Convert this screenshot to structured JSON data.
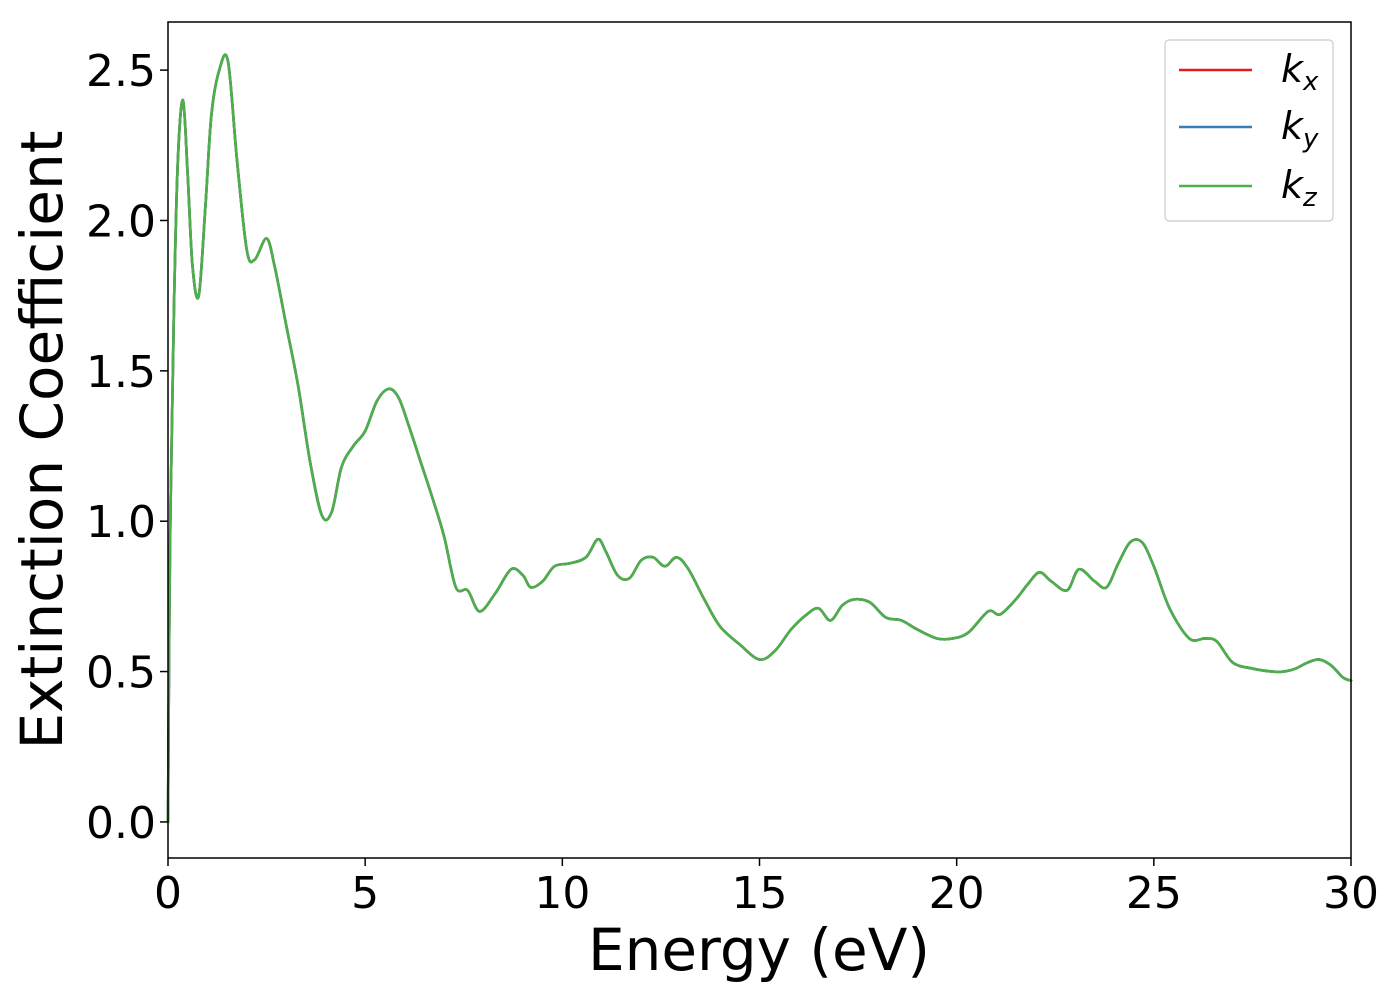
{
  "chart_data": {
    "type": "line",
    "title": "",
    "xlabel": "Energy (eV)",
    "ylabel": "Extinction Coefficient",
    "xlim": [
      0,
      30
    ],
    "ylim": [
      -0.12,
      2.66
    ],
    "xticks": [
      0,
      5,
      10,
      15,
      20,
      25,
      30
    ],
    "xtick_labels": [
      "0",
      "5",
      "10",
      "15",
      "20",
      "25",
      "30"
    ],
    "yticks": [
      0.0,
      0.5,
      1.0,
      1.5,
      2.0,
      2.5
    ],
    "ytick_labels": [
      "0.0",
      "0.5",
      "1.0",
      "1.5",
      "2.0",
      "2.5"
    ],
    "grid": false,
    "legend_position": "top-right",
    "x": [
      0,
      0.05,
      0.15,
      0.25,
      0.38,
      0.5,
      0.62,
      0.78,
      0.95,
      1.1,
      1.3,
      1.52,
      1.75,
      2.0,
      2.2,
      2.5,
      2.7,
      3.0,
      3.3,
      3.6,
      3.9,
      4.15,
      4.4,
      4.7,
      5.0,
      5.3,
      5.6,
      5.85,
      6.1,
      6.4,
      6.7,
      7.0,
      7.3,
      7.6,
      7.9,
      8.3,
      8.7,
      9.0,
      9.2,
      9.5,
      9.8,
      10.2,
      10.6,
      10.9,
      11.1,
      11.4,
      11.7,
      12.0,
      12.3,
      12.6,
      12.9,
      13.2,
      13.6,
      14.0,
      14.5,
      15.0,
      15.4,
      15.8,
      16.2,
      16.5,
      16.8,
      17.1,
      17.4,
      17.8,
      18.2,
      18.6,
      19.0,
      19.5,
      19.9,
      20.3,
      20.8,
      21.1,
      21.5,
      21.8,
      22.1,
      22.4,
      22.8,
      23.1,
      23.5,
      23.8,
      24.1,
      24.4,
      24.7,
      25.0,
      25.4,
      25.9,
      26.3,
      26.6,
      27.0,
      27.5,
      28.0,
      28.3,
      28.6,
      28.9,
      29.2,
      29.5,
      29.8,
      30.0
    ],
    "series": [
      {
        "name": "k_x",
        "legend_main": "k",
        "legend_sub": "x",
        "color": "#e41a1c",
        "values": [
          0.0,
          0.9,
          1.7,
          2.2,
          2.4,
          2.15,
          1.85,
          1.75,
          2.05,
          2.35,
          2.5,
          2.53,
          2.2,
          1.9,
          1.87,
          1.94,
          1.85,
          1.65,
          1.45,
          1.2,
          1.02,
          1.03,
          1.18,
          1.25,
          1.3,
          1.4,
          1.44,
          1.41,
          1.32,
          1.2,
          1.08,
          0.95,
          0.78,
          0.77,
          0.7,
          0.76,
          0.84,
          0.82,
          0.78,
          0.8,
          0.85,
          0.86,
          0.88,
          0.94,
          0.9,
          0.82,
          0.81,
          0.87,
          0.88,
          0.85,
          0.88,
          0.84,
          0.74,
          0.65,
          0.59,
          0.54,
          0.57,
          0.64,
          0.69,
          0.71,
          0.67,
          0.72,
          0.74,
          0.73,
          0.68,
          0.67,
          0.64,
          0.61,
          0.61,
          0.63,
          0.7,
          0.69,
          0.74,
          0.79,
          0.83,
          0.8,
          0.77,
          0.84,
          0.8,
          0.78,
          0.86,
          0.93,
          0.93,
          0.85,
          0.71,
          0.61,
          0.61,
          0.6,
          0.53,
          0.51,
          0.5,
          0.5,
          0.51,
          0.53,
          0.54,
          0.52,
          0.48,
          0.47
        ]
      },
      {
        "name": "k_y",
        "legend_main": "k",
        "legend_sub": "y",
        "color": "#377eb8",
        "values": [
          0.0,
          0.9,
          1.7,
          2.2,
          2.4,
          2.15,
          1.85,
          1.75,
          2.05,
          2.35,
          2.5,
          2.53,
          2.2,
          1.9,
          1.87,
          1.94,
          1.85,
          1.65,
          1.45,
          1.2,
          1.02,
          1.03,
          1.18,
          1.25,
          1.3,
          1.4,
          1.44,
          1.41,
          1.32,
          1.2,
          1.08,
          0.95,
          0.78,
          0.77,
          0.7,
          0.76,
          0.84,
          0.82,
          0.78,
          0.8,
          0.85,
          0.86,
          0.88,
          0.94,
          0.9,
          0.82,
          0.81,
          0.87,
          0.88,
          0.85,
          0.88,
          0.84,
          0.74,
          0.65,
          0.59,
          0.54,
          0.57,
          0.64,
          0.69,
          0.71,
          0.67,
          0.72,
          0.74,
          0.73,
          0.68,
          0.67,
          0.64,
          0.61,
          0.61,
          0.63,
          0.7,
          0.69,
          0.74,
          0.79,
          0.83,
          0.8,
          0.77,
          0.84,
          0.8,
          0.78,
          0.86,
          0.93,
          0.93,
          0.85,
          0.71,
          0.61,
          0.61,
          0.6,
          0.53,
          0.51,
          0.5,
          0.5,
          0.51,
          0.53,
          0.54,
          0.52,
          0.48,
          0.47
        ]
      },
      {
        "name": "k_z",
        "legend_main": "k",
        "legend_sub": "z",
        "color": "#4daf4a",
        "values": [
          0.0,
          0.9,
          1.7,
          2.2,
          2.4,
          2.15,
          1.85,
          1.75,
          2.05,
          2.35,
          2.5,
          2.53,
          2.2,
          1.9,
          1.87,
          1.94,
          1.85,
          1.65,
          1.45,
          1.2,
          1.02,
          1.03,
          1.18,
          1.25,
          1.3,
          1.4,
          1.44,
          1.41,
          1.32,
          1.2,
          1.08,
          0.95,
          0.78,
          0.77,
          0.7,
          0.76,
          0.84,
          0.82,
          0.78,
          0.8,
          0.85,
          0.86,
          0.88,
          0.94,
          0.9,
          0.82,
          0.81,
          0.87,
          0.88,
          0.85,
          0.88,
          0.84,
          0.74,
          0.65,
          0.59,
          0.54,
          0.57,
          0.64,
          0.69,
          0.71,
          0.67,
          0.72,
          0.74,
          0.73,
          0.68,
          0.67,
          0.64,
          0.61,
          0.61,
          0.63,
          0.7,
          0.69,
          0.74,
          0.79,
          0.83,
          0.8,
          0.77,
          0.84,
          0.8,
          0.78,
          0.86,
          0.93,
          0.93,
          0.85,
          0.71,
          0.61,
          0.61,
          0.6,
          0.53,
          0.51,
          0.5,
          0.5,
          0.51,
          0.53,
          0.54,
          0.52,
          0.48,
          0.47
        ]
      }
    ]
  }
}
